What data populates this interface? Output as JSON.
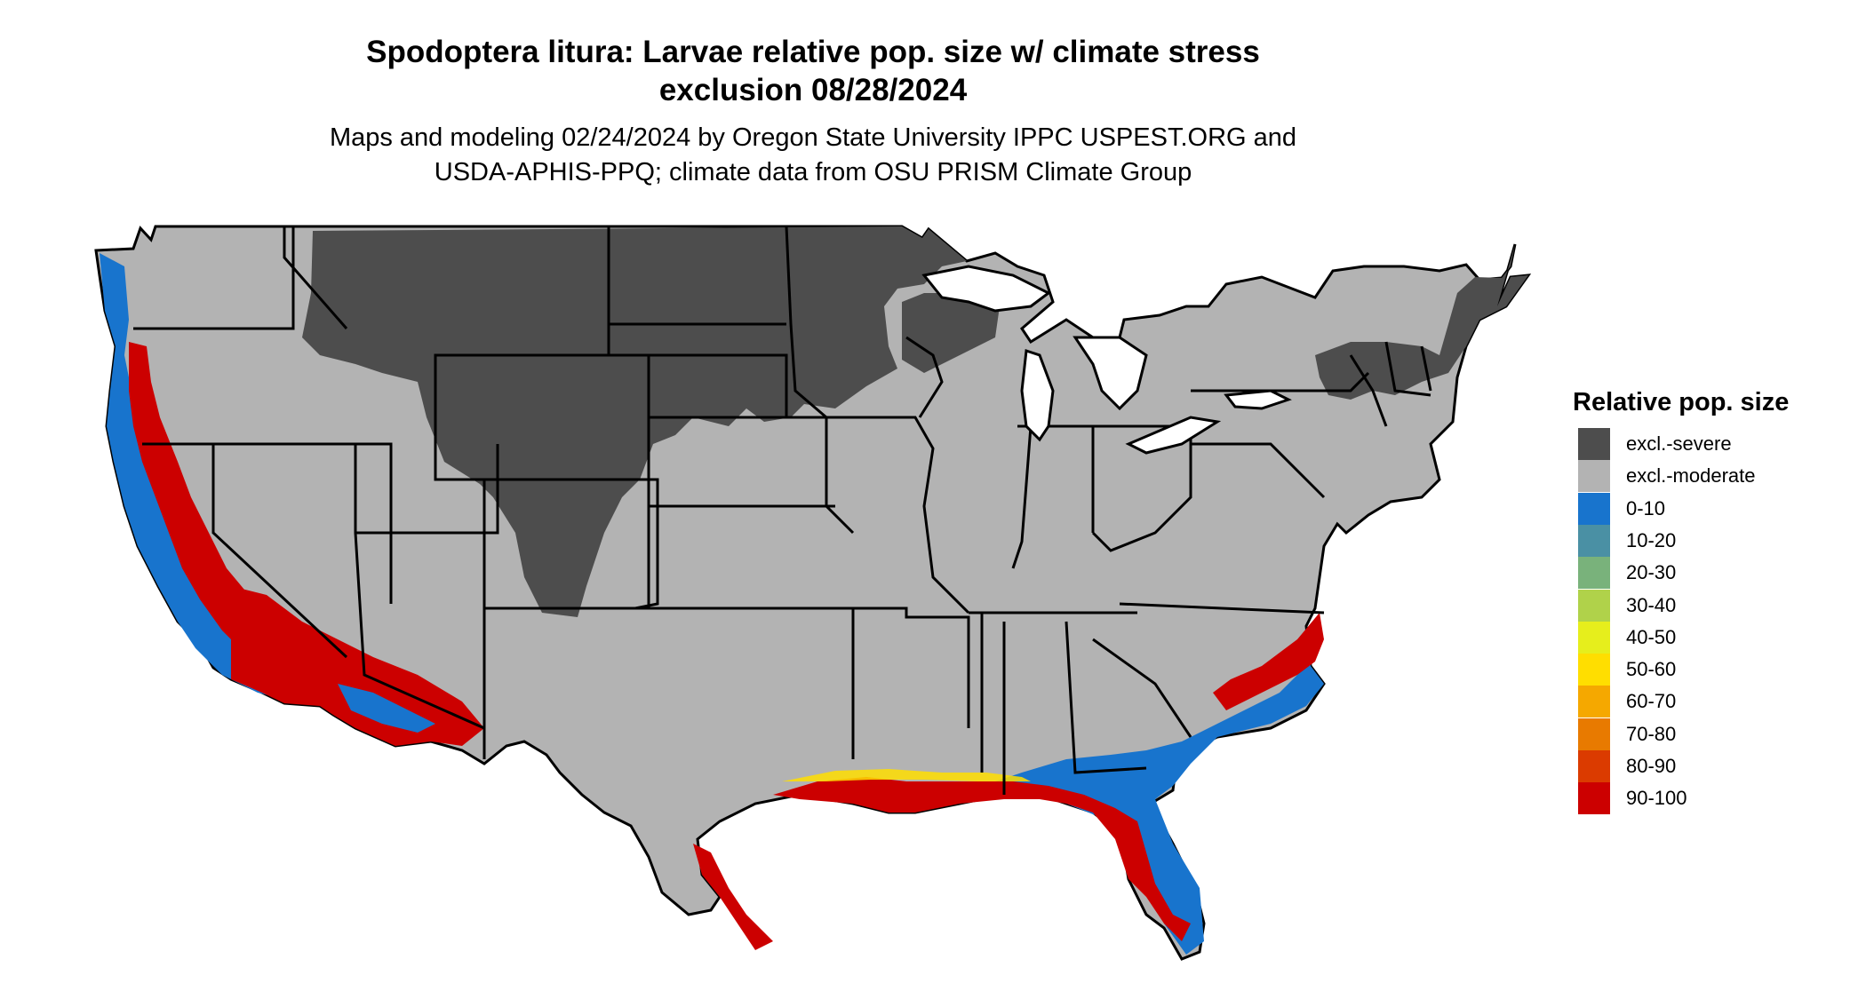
{
  "title": {
    "line1": "Spodoptera litura: Larvae relative pop. size w/ climate stress",
    "line2": "exclusion 08/28/2024"
  },
  "subtitle": {
    "line1": "Maps and modeling 02/24/2024 by Oregon State University IPPC USPEST.ORG and",
    "line2": "USDA-APHIS-PPQ; climate data from OSU PRISM Climate Group"
  },
  "legend": {
    "title": "Relative pop. size",
    "items": [
      {
        "label": "excl.-severe",
        "color": "#4d4d4d"
      },
      {
        "label": "excl.-moderate",
        "color": "#b3b3b3"
      },
      {
        "label": "0-10",
        "color": "#1874cd"
      },
      {
        "label": "10-20",
        "color": "#4a90a4"
      },
      {
        "label": "20-30",
        "color": "#79b27b"
      },
      {
        "label": "30-40",
        "color": "#b0d24a"
      },
      {
        "label": "40-50",
        "color": "#e6ee1c"
      },
      {
        "label": "50-60",
        "color": "#ffde00"
      },
      {
        "label": "60-70",
        "color": "#f5a800"
      },
      {
        "label": "70-80",
        "color": "#e87a00"
      },
      {
        "label": "80-90",
        "color": "#db3b00"
      },
      {
        "label": "90-100",
        "color": "#cc0000"
      }
    ]
  }
}
